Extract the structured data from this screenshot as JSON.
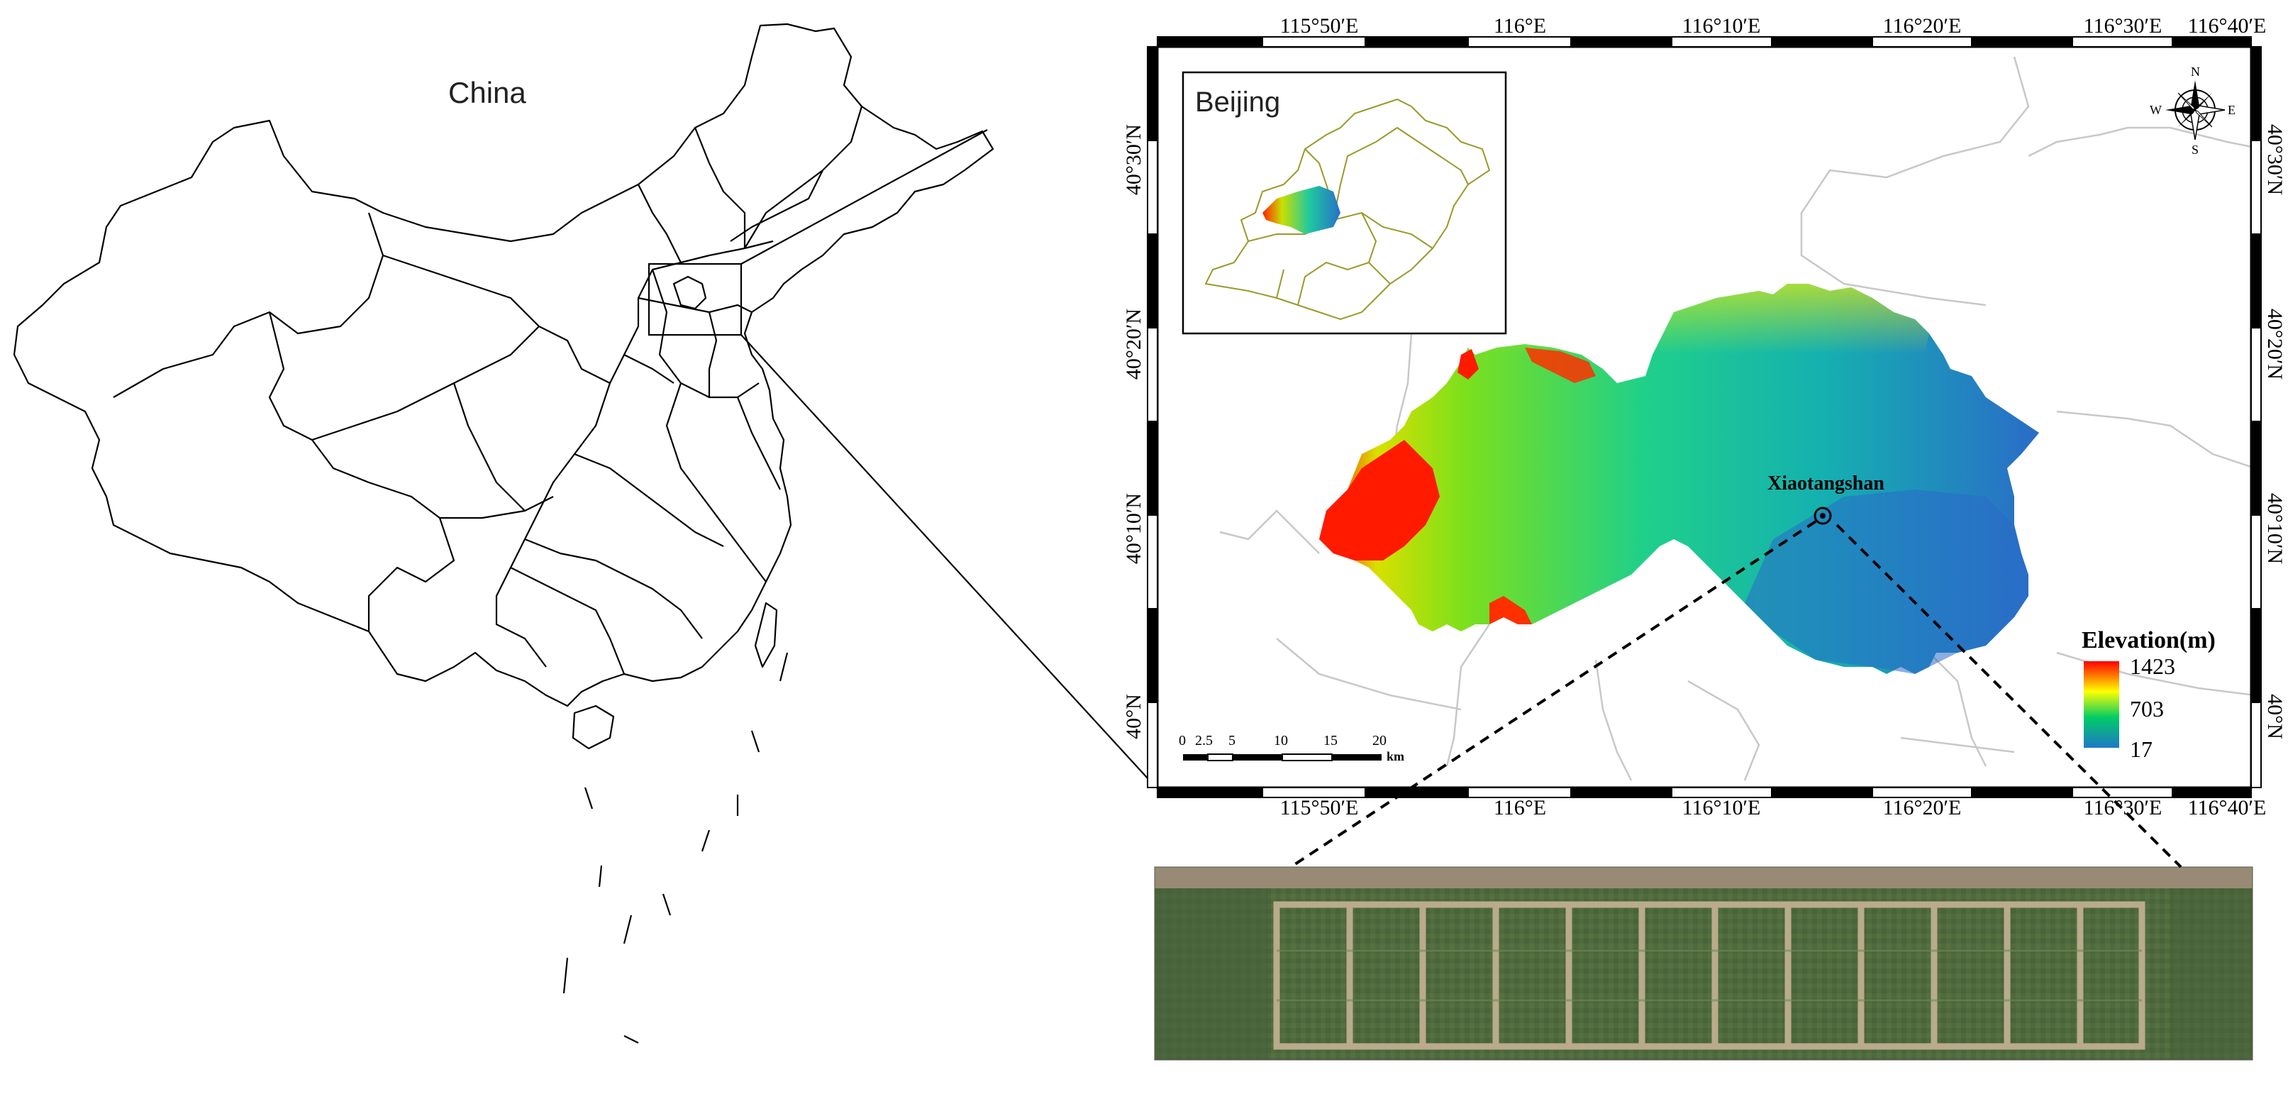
{
  "china_map": {
    "country_label": "China"
  },
  "main_map": {
    "top_ticks": [
      "115°50′E",
      "116°E",
      "116°10′E",
      "116°20′E",
      "116°30′E",
      "116°40′E"
    ],
    "bottom_ticks": [
      "115°50′E",
      "116°E",
      "116°10′E",
      "116°20′E",
      "116°30′E",
      "116°40′E"
    ],
    "left_ticks": [
      "40°30′N",
      "40°20′N",
      "40°10′N",
      "40°N"
    ],
    "right_ticks": [
      "40°30′N",
      "40°20′N",
      "40°10′N",
      "40°N"
    ],
    "site_label": "Xiaotangshan",
    "inset_label": "Beijing",
    "compass": {
      "n": "N",
      "s": "S",
      "e": "E",
      "w": "W"
    },
    "legend": {
      "title": "Elevation(m)",
      "max": "1423",
      "mid": "703",
      "min": "17",
      "colors": [
        "#ff0000",
        "#ffff00",
        "#00cc66",
        "#1e78c8"
      ]
    },
    "scale_bar": {
      "labels": [
        "0",
        "2.5",
        "5",
        "10",
        "15",
        "20"
      ],
      "unit": "km"
    }
  }
}
